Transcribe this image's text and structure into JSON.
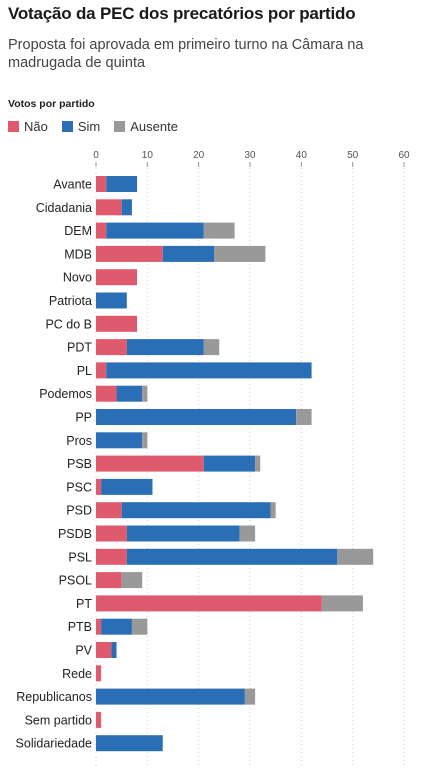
{
  "header": {
    "title": "Votação da PEC dos precatórios por partido",
    "subtitle": "Proposta foi aprovada em primeiro turno na Câmara na madrugada de quinta",
    "section_label": "Votos por partido"
  },
  "colors": {
    "nao": "#e05a6d",
    "sim": "#2a6fb5",
    "ausente": "#999999"
  },
  "chart_data": {
    "type": "bar",
    "orientation": "horizontal",
    "stacked": true,
    "title": "Votação da PEC dos precatórios por partido",
    "subtitle": "Proposta foi aprovada em primeiro turno na Câmara na madrugada de quinta",
    "xlim": [
      0,
      60
    ],
    "xticks": [
      0,
      10,
      20,
      30,
      40,
      50,
      60
    ],
    "legend_position": "top-left",
    "categories": [
      "Avante",
      "Cidadania",
      "DEM",
      "MDB",
      "Novo",
      "Patriota",
      "PC do B",
      "PDT",
      "PL",
      "Podemos",
      "PP",
      "Pros",
      "PSB",
      "PSC",
      "PSD",
      "PSDB",
      "PSL",
      "PSOL",
      "PT",
      "PTB",
      "PV",
      "Rede",
      "Republicanos",
      "Sem partido",
      "Solidariedade"
    ],
    "series": [
      {
        "name": "Não",
        "color": "#e05a6d",
        "values": [
          2,
          5,
          2,
          13,
          8,
          0,
          8,
          6,
          2,
          4,
          0,
          0,
          21,
          1,
          5,
          6,
          6,
          5,
          44,
          1,
          3,
          1,
          0,
          1,
          0
        ]
      },
      {
        "name": "Sim",
        "color": "#2a6fb5",
        "values": [
          6,
          2,
          19,
          10,
          0,
          6,
          0,
          15,
          40,
          5,
          39,
          9,
          10,
          10,
          29,
          22,
          41,
          0,
          0,
          6,
          1,
          0,
          29,
          0,
          13
        ]
      },
      {
        "name": "Ausente",
        "color": "#999999",
        "values": [
          0,
          0,
          6,
          10,
          0,
          0,
          0,
          3,
          0,
          1,
          3,
          1,
          1,
          0,
          1,
          3,
          7,
          4,
          8,
          3,
          0,
          0,
          2,
          0,
          0
        ]
      }
    ]
  }
}
